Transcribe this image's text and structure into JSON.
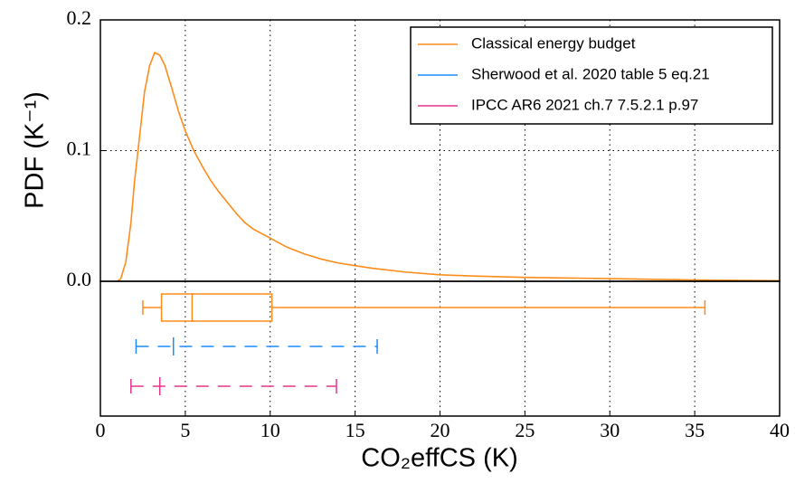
{
  "chart_data": [
    {
      "type": "line",
      "ylabel": "PDF (K⁻¹)",
      "x": [
        1.0,
        1.2,
        1.5,
        1.8,
        2.0,
        2.3,
        2.6,
        2.9,
        3.2,
        3.5,
        3.8,
        4.2,
        4.6,
        5.0,
        5.5,
        6.0,
        6.5,
        7.0,
        7.5,
        8.0,
        8.5,
        9.0,
        10,
        11,
        12,
        13,
        14,
        15,
        16,
        18,
        20,
        22,
        25,
        30,
        35,
        40
      ],
      "series": [
        {
          "name": "Classical energy budget",
          "color": "#ff8c1a",
          "values": [
            0,
            0.002,
            0.015,
            0.045,
            0.075,
            0.11,
            0.145,
            0.165,
            0.175,
            0.173,
            0.165,
            0.148,
            0.13,
            0.115,
            0.1,
            0.088,
            0.077,
            0.068,
            0.06,
            0.052,
            0.045,
            0.04,
            0.033,
            0.026,
            0.021,
            0.017,
            0.014,
            0.012,
            0.01,
            0.007,
            0.005,
            0.004,
            0.003,
            0.002,
            0.001,
            0.0005
          ]
        }
      ],
      "xlim": [
        0,
        40
      ],
      "xticks": [
        0,
        5,
        10,
        15,
        20,
        25,
        30,
        35,
        40
      ],
      "ylim": [
        0,
        0.2
      ],
      "yticks": [
        {
          "value": 0,
          "label": "0.0"
        },
        0.1,
        0.2
      ],
      "grid": true,
      "legend": "upper right"
    },
    {
      "type": "box",
      "xlabel": "CO₂effCS (K)",
      "series": [
        {
          "color": "#ff8c1a",
          "whislo": 2.5,
          "q1": 3.6,
          "med": 5.4,
          "q3": 10.1,
          "whishi": 35.6
        },
        {
          "name": "Sherwood et al. 2020 table 5 eq.21",
          "color": "#1a8cff",
          "low": 2.1,
          "mid": 4.3,
          "high": 16.3
        },
        {
          "name": "IPCC AR6 2021 ch.7 7.5.2.1 p.97",
          "color": "#e6338c",
          "low": 1.8,
          "mid": 3.5,
          "high": 13.9
        }
      ],
      "xlim": [
        0,
        40
      ],
      "xticks": [
        0,
        5,
        10,
        15,
        20,
        25,
        30,
        35,
        40
      ],
      "grid": true
    }
  ]
}
